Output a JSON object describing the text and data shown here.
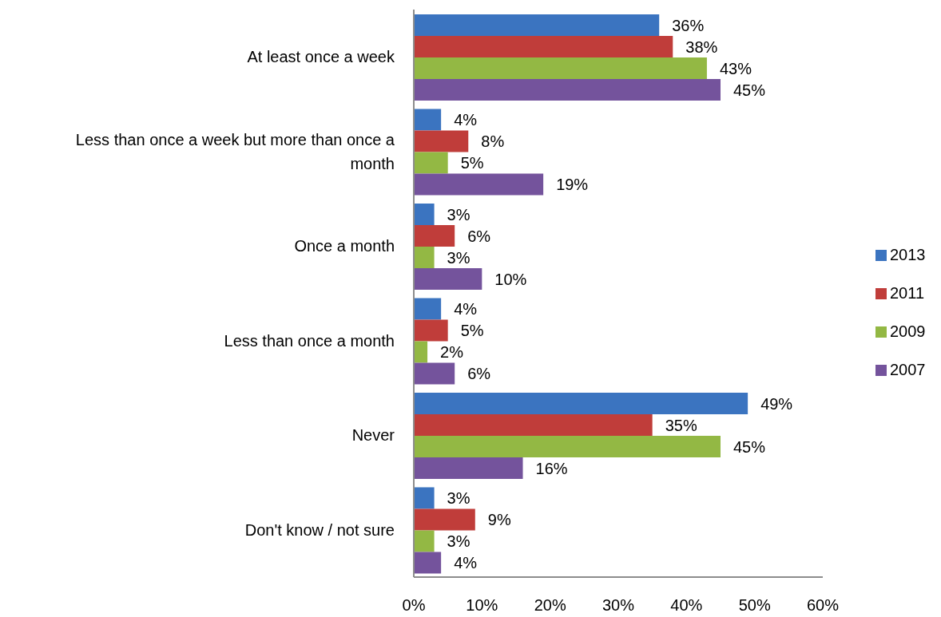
{
  "chart_data": {
    "type": "bar",
    "orientation": "horizontal",
    "categories": [
      "At least once a week",
      "Less than once a week but more than once a month",
      "Once a month",
      "Less than once a month",
      "Never",
      "Don't know / not sure"
    ],
    "series": [
      {
        "name": "2013",
        "color": "#3b74c0",
        "values": [
          36,
          4,
          3,
          4,
          49,
          3
        ],
        "value_labels": [
          "36%",
          "4%",
          "3%",
          "4%",
          "49%",
          "3%"
        ]
      },
      {
        "name": "2011",
        "color": "#c03d3a",
        "values": [
          38,
          8,
          6,
          5,
          35,
          9
        ],
        "value_labels": [
          "38%",
          "8%",
          "6%",
          "5%",
          "35%",
          "9%"
        ]
      },
      {
        "name": "2009",
        "color": "#93b844",
        "values": [
          43,
          5,
          3,
          2,
          45,
          3
        ],
        "value_labels": [
          "43%",
          "5%",
          "3%",
          "2%",
          "45%",
          "3%"
        ]
      },
      {
        "name": "2007",
        "color": "#74539c",
        "values": [
          45,
          19,
          10,
          6,
          16,
          4
        ],
        "value_labels": [
          "45%",
          "19%",
          "10%",
          "6%",
          "16%",
          "4%"
        ]
      }
    ],
    "xlim": [
      0,
      60
    ],
    "xticks": [
      {
        "value": 0,
        "label": "0%"
      },
      {
        "value": 10,
        "label": "10%"
      },
      {
        "value": 20,
        "label": "20%"
      },
      {
        "value": 30,
        "label": "30%"
      },
      {
        "value": 40,
        "label": "40%"
      },
      {
        "value": 50,
        "label": "50%"
      },
      {
        "value": 60,
        "label": "60%"
      }
    ],
    "grid": false,
    "legend": "right"
  }
}
